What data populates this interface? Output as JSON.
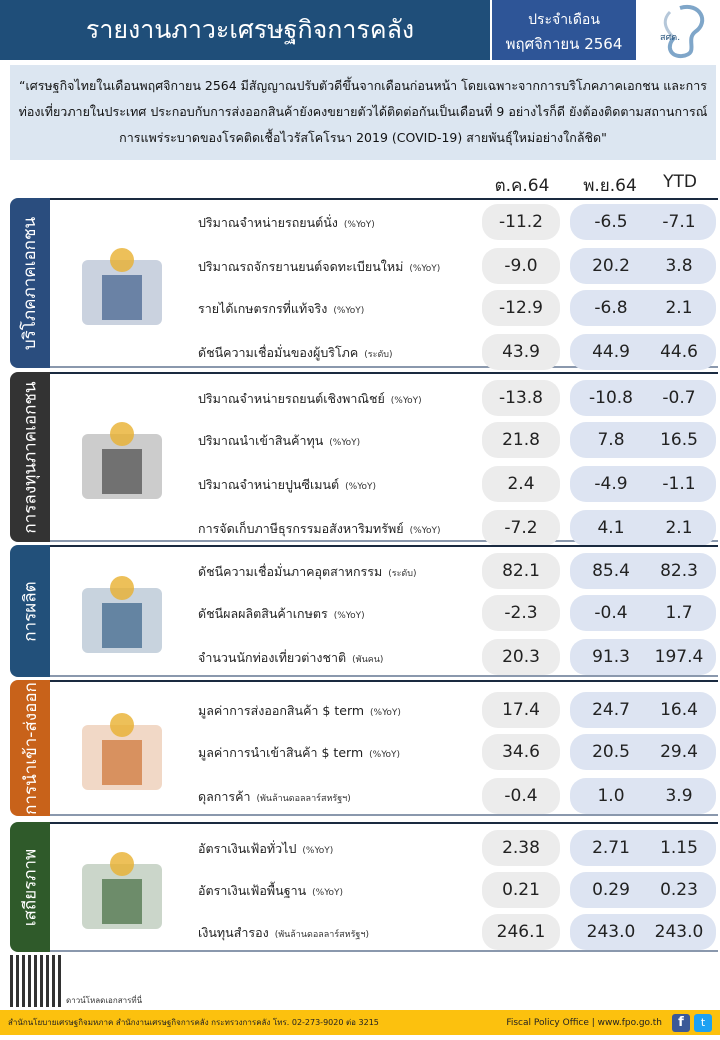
{
  "header": {
    "title": "รายงานภาวะเศรษฐกิจการคลัง",
    "period_label": "ประจำเดือน",
    "period_value": "พฤศจิกายน 2564",
    "logo_text": "สศค."
  },
  "summary": "“เศรษฐกิจไทยในเดือนพฤศจิกายน 2564 มีสัญญาณปรับตัวดีขึ้นจากเดือนก่อนหน้า โดยเฉพาะจากการบริโภคภาคเอกชน และการท่องเที่ยวภายในประเทศ ประกอบกับการส่งออกสินค้ายังคงขยายตัวได้ติดต่อกันเป็นเดือนที่ 9 อย่างไรก็ดี ยังต้องติดตามสถานการณ์การแพร่ระบาดของโรคติดเชื้อไวรัสโคโรนา 2019 (COVID-19) สายพันธุ์ใหม่อย่างใกล้ชิด\"",
  "columns": [
    "ต.ค.64",
    "พ.ย.64",
    "YTD"
  ],
  "sections": [
    {
      "title": "บริโภคภาคเอกชน",
      "color": "#2a4d7e",
      "icon": "shopping-store-icon",
      "rows": [
        {
          "label": "ปริมาณจำหน่ายรถยนต์นั่ง",
          "unit": "(%YoY)",
          "oct": "-11.2",
          "nov": "-6.5",
          "ytd": "-7.1"
        },
        {
          "label": "ปริมาณรถจักรยานยนต์จดทะเบียนใหม่",
          "unit": "(%YoY)",
          "oct": "-9.0",
          "nov": "20.2",
          "ytd": "3.8"
        },
        {
          "label": "รายได้เกษตรกรที่แท้จริง",
          "unit": "(%YoY)",
          "oct": "-12.9",
          "nov": "-6.8",
          "ytd": "2.1"
        },
        {
          "label": "ดัชนีความเชื่อมั่นของผู้บริโภค",
          "unit": "(ระดับ)",
          "oct": "43.9",
          "nov": "44.9",
          "ytd": "44.6"
        }
      ]
    },
    {
      "title": "การลงทุนภาคเอกชน",
      "color": "#333333",
      "icon": "construction-icon",
      "rows": [
        {
          "label": "ปริมาณจำหน่ายรถยนต์เชิงพาณิชย์",
          "unit": "(%YoY)",
          "oct": "-13.8",
          "nov": "-10.8",
          "ytd": "-0.7"
        },
        {
          "label": "ปริมาณนำเข้าสินค้าทุน",
          "unit": "(%YoY)",
          "oct": "21.8",
          "nov": "7.8",
          "ytd": "16.5"
        },
        {
          "label": "ปริมาณจำหน่ายปูนซีเมนต์",
          "unit": "(%YoY)",
          "oct": "2.4",
          "nov": "-4.9",
          "ytd": "-1.1"
        },
        {
          "label": "การจัดเก็บภาษีธุรกรรมอสังหาริมทรัพย์",
          "unit": "(%YoY)",
          "oct": "-7.2",
          "nov": "4.1",
          "ytd": "2.1"
        }
      ]
    },
    {
      "title": "การผลิต",
      "color": "#22507a",
      "icon": "airport-hotel-icon",
      "rows": [
        {
          "label": "ดัชนีความเชื่อมั่นภาคอุตสาหกรรม",
          "unit": "(ระดับ)",
          "oct": "82.1",
          "nov": "85.4",
          "ytd": "82.3"
        },
        {
          "label": "ดัชนีผลผลิตสินค้าเกษตร",
          "unit": "(%YoY)",
          "oct": "-2.3",
          "nov": "-0.4",
          "ytd": "1.7"
        },
        {
          "label": "จำนวนนักท่องเที่ยวต่างชาติ",
          "unit": "(พันคน)",
          "oct": "20.3",
          "nov": "91.3",
          "ytd": "197.4"
        }
      ]
    },
    {
      "title": "การนำเข้า-ส่งออก",
      "color": "#c8621a",
      "icon": "cargo-ship-icon",
      "rows": [
        {
          "label": "มูลค่าการส่งออกสินค้า $ term",
          "unit": "(%YoY)",
          "oct": "17.4",
          "nov": "24.7",
          "ytd": "16.4"
        },
        {
          "label": "มูลค่าการนำเข้าสินค้า $ term",
          "unit": "(%YoY)",
          "oct": "34.6",
          "nov": "20.5",
          "ytd": "29.4"
        },
        {
          "label": "ดุลการค้า",
          "unit": "(พันล้านดอลลาร์สหรัฐฯ)",
          "oct": "-0.4",
          "nov": "1.0",
          "ytd": "3.9"
        }
      ]
    },
    {
      "title": "เสถียรภาพ",
      "color": "#2f5a2a",
      "icon": "money-bag-icon",
      "rows": [
        {
          "label": "อัตราเงินเฟ้อทั่วไป",
          "unit": "(%YoY)",
          "oct": "2.38",
          "nov": "2.71",
          "ytd": "1.15"
        },
        {
          "label": "อัตราเงินเฟ้อพื้นฐาน",
          "unit": "(%YoY)",
          "oct": "0.21",
          "nov": "0.29",
          "ytd": "0.23"
        },
        {
          "label": "เงินทุนสำรอง",
          "unit": "(พันล้านดอลลาร์สหรัฐฯ)",
          "oct": "246.1",
          "nov": "243.0",
          "ytd": "243.0"
        }
      ]
    }
  ],
  "qr_caption": "ดาวน์โหลดเอกสารที่นี่",
  "footer": {
    "address": "สำนักนโยบายเศรษฐกิจมหภาค สำนักงานเศรษฐกิจการคลัง กระทรวงการคลัง โทร. 02-273-9020 ต่อ 3215",
    "site": "Fiscal Policy Office | www.fpo.go.th"
  }
}
